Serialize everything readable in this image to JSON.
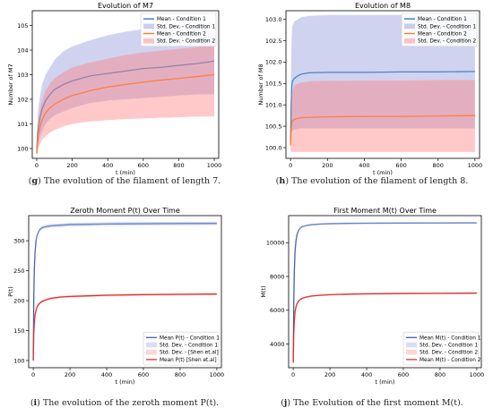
{
  "panels": [
    {
      "caption_letter": "g",
      "caption_text": "The evolution of the filament of length 7.",
      "chart_data": {
        "type": "line",
        "title": "Evolution of M7",
        "xlabel": "t (min)",
        "ylabel": "Number of M7",
        "xlim": [
          -25,
          1025
        ],
        "ylim": [
          99.6,
          105.6
        ],
        "xticks": [
          0,
          200,
          400,
          600,
          800,
          1000
        ],
        "yticks": [
          100,
          101,
          102,
          103,
          104,
          105
        ],
        "legend": "top-right",
        "series": [
          {
            "name": "Mean - Condition 1",
            "kind": "line",
            "color": "#1f77b4",
            "x": [
              0,
              5,
              10,
              20,
              30,
              50,
              75,
              100,
              150,
              200,
              300,
              400,
              500,
              600,
              700,
              800,
              900,
              1000
            ],
            "y": [
              99.8,
              100.6,
              100.9,
              101.3,
              101.6,
              101.95,
              102.2,
              102.4,
              102.6,
              102.75,
              102.95,
              103.05,
              103.15,
              103.25,
              103.3,
              103.38,
              103.45,
              103.55
            ]
          },
          {
            "name": "Std. Dev. - Condition 1",
            "kind": "band",
            "color": "#8c96d9",
            "x": [
              0,
              5,
              10,
              20,
              30,
              50,
              75,
              100,
              150,
              200,
              300,
              400,
              500,
              600,
              700,
              800,
              900,
              1000
            ],
            "lower": [
              99.7,
              100.0,
              100.2,
              100.5,
              100.7,
              101.0,
              101.2,
              101.35,
              101.5,
              101.65,
              101.85,
              101.95,
              102.0,
              102.05,
              102.1,
              102.15,
              102.2,
              102.2
            ],
            "upper": [
              99.9,
              101.3,
              101.7,
              102.2,
              102.6,
              103.0,
              103.3,
              103.6,
              103.95,
              104.15,
              104.4,
              104.6,
              104.75,
              104.85,
              104.95,
              105.0,
              105.05,
              105.1
            ]
          },
          {
            "name": "Mean - Condition 2",
            "kind": "line",
            "color": "#ff7f0e",
            "x": [
              0,
              5,
              10,
              20,
              30,
              50,
              75,
              100,
              150,
              200,
              300,
              400,
              500,
              600,
              700,
              800,
              900,
              1000
            ],
            "y": [
              99.8,
              100.3,
              100.6,
              100.9,
              101.15,
              101.45,
              101.65,
              101.8,
              102.0,
              102.15,
              102.35,
              102.5,
              102.6,
              102.7,
              102.78,
              102.85,
              102.92,
              103.0
            ]
          },
          {
            "name": "Std. Dev. - Condition 2",
            "kind": "band",
            "color": "#ff7f7f",
            "x": [
              0,
              5,
              10,
              20,
              30,
              50,
              75,
              100,
              150,
              200,
              300,
              400,
              500,
              600,
              700,
              800,
              900,
              1000
            ],
            "lower": [
              99.7,
              99.9,
              100.0,
              100.2,
              100.35,
              100.5,
              100.65,
              100.75,
              100.9,
              101.0,
              101.1,
              101.15,
              101.2,
              101.22,
              101.25,
              101.27,
              101.3,
              101.3
            ],
            "upper": [
              99.9,
              100.8,
              101.2,
              101.65,
              101.95,
              102.35,
              102.65,
              102.85,
              103.1,
              103.3,
              103.5,
              103.65,
              103.8,
              103.9,
              103.98,
              104.05,
              104.12,
              104.2
            ]
          }
        ]
      }
    },
    {
      "caption_letter": "h",
      "caption_text": "The evolution of the filament of length 8.",
      "chart_data": {
        "type": "line",
        "title": "Evolution of M8",
        "xlabel": "t (min)",
        "ylabel": "Number of M8",
        "xlim": [
          -25,
          1025
        ],
        "ylim": [
          99.75,
          103.2
        ],
        "xticks": [
          0,
          200,
          400,
          600,
          800,
          1000
        ],
        "yticks": [
          100.0,
          100.5,
          101.0,
          101.5,
          102.0,
          102.5,
          103.0
        ],
        "ytick_labels": [
          "100.0",
          "100.5",
          "101.0",
          "101.5",
          "102.0",
          "102.5",
          "103.0"
        ],
        "legend": "top-right",
        "series": [
          {
            "name": "Mean - Condition 1",
            "kind": "line",
            "color": "#1f77b4",
            "x": [
              0,
              3,
              6,
              10,
              20,
              40,
              60,
              100,
              200,
              400,
              600,
              800,
              1000
            ],
            "y": [
              100.1,
              100.9,
              101.4,
              101.55,
              101.62,
              101.68,
              101.72,
              101.75,
              101.76,
              101.76,
              101.77,
              101.77,
              101.78
            ]
          },
          {
            "name": "Std. Dev. - Condition 1",
            "kind": "band",
            "color": "#8c96d9",
            "x": [
              0,
              3,
              6,
              10,
              20,
              40,
              60,
              100,
              200,
              400,
              600,
              800,
              1000
            ],
            "lower": [
              100.0,
              100.2,
              100.35,
              100.4,
              100.42,
              100.44,
              100.45,
              100.45,
              100.45,
              100.45,
              100.45,
              100.45,
              100.45
            ],
            "upper": [
              100.2,
              101.9,
              102.6,
              102.85,
              102.95,
              103.0,
              103.05,
              103.08,
              103.1,
              103.1,
              103.1,
              103.1,
              103.1
            ]
          },
          {
            "name": "Mean - Condition 2",
            "kind": "line",
            "color": "#ff7f0e",
            "x": [
              0,
              3,
              6,
              10,
              20,
              40,
              60,
              100,
              200,
              400,
              600,
              800,
              1000
            ],
            "y": [
              100.05,
              100.4,
              100.55,
              100.62,
              100.66,
              100.69,
              100.7,
              100.71,
              100.72,
              100.73,
              100.73,
              100.74,
              100.75
            ]
          },
          {
            "name": "Std. Dev. - Condition 2",
            "kind": "band",
            "color": "#ff7f7f",
            "x": [
              0,
              3,
              6,
              10,
              20,
              40,
              60,
              100,
              200,
              400,
              600,
              800,
              1000
            ],
            "lower": [
              99.95,
              99.9,
              99.9,
              99.9,
              99.9,
              99.9,
              99.9,
              99.9,
              99.9,
              99.9,
              99.9,
              99.9,
              99.9
            ],
            "upper": [
              100.15,
              100.9,
              101.2,
              101.35,
              101.45,
              101.5,
              101.52,
              101.55,
              101.56,
              101.57,
              101.57,
              101.58,
              101.58
            ]
          }
        ]
      }
    },
    {
      "caption_letter": "i",
      "caption_text": "The evolution of the zeroth moment P(t).",
      "chart_data": {
        "type": "line",
        "title": "Zeroth Moment P(t) Over Time",
        "xlabel": "t (min)",
        "ylabel": "P(t)",
        "xlim": [
          -25,
          1025
        ],
        "ylim": [
          88,
          342
        ],
        "xticks": [
          0,
          200,
          400,
          600,
          800,
          1000
        ],
        "yticks": [
          100,
          150,
          200,
          250,
          300
        ],
        "legend": "bottom-right",
        "series": [
          {
            "name": "Mean P(t) - Condition 1",
            "kind": "line",
            "color": "#3f5fb0",
            "x": [
              0,
              3,
              6,
              10,
              15,
              20,
              30,
              40,
              50,
              75,
              100,
              150,
              200,
              300,
              400,
              600,
              800,
              1000
            ],
            "y": [
              100,
              210,
              255,
              282,
              300,
              308,
              316,
              320,
              322,
              324,
              325,
              326,
              327,
              327.5,
              328,
              328.5,
              328.8,
              329
            ]
          },
          {
            "name": "Std. Dev. - Condition 1",
            "kind": "band",
            "color": "#aab4e8",
            "x": [
              0,
              3,
              6,
              10,
              15,
              20,
              30,
              40,
              50,
              75,
              100,
              150,
              200,
              300,
              400,
              600,
              800,
              1000
            ],
            "lower": [
              99,
              207,
              252,
              279,
              297,
              305,
              313,
              317,
              319,
              321,
              322,
              323,
              324,
              324.5,
              325,
              325.5,
              325.8,
              326
            ],
            "upper": [
              101,
              213,
              258,
              285,
              303,
              311,
              319,
              323,
              325,
              327,
              328,
              329,
              330,
              330.5,
              331,
              331.5,
              331.8,
              332
            ]
          },
          {
            "name": "Std. Dev. - [Shen et.al]",
            "kind": "band",
            "color": "#f4a6a6",
            "x": [
              0,
              3,
              6,
              10,
              15,
              20,
              30,
              40,
              50,
              75,
              100,
              150,
              200,
              300,
              400,
              600,
              800,
              1000
            ],
            "lower": [
              99,
              145,
              162,
              174,
              182,
              187,
              192,
              195,
              197,
              200,
              202,
              204,
              205,
              206,
              207,
              208,
              208.5,
              209
            ],
            "upper": [
              101,
              149,
              166,
              178,
              186,
              191,
              196,
              199,
              201,
              204,
              206,
              208,
              209,
              210,
              211,
              212,
              212.5,
              213
            ]
          },
          {
            "name": "Mean P(t) [Shen et.al]",
            "kind": "line",
            "color": "#e03030",
            "x": [
              0,
              3,
              6,
              10,
              15,
              20,
              30,
              40,
              50,
              75,
              100,
              150,
              200,
              300,
              400,
              600,
              800,
              1000
            ],
            "y": [
              100,
              147,
              164,
              176,
              184,
              189,
              194,
              197,
              199,
              202,
              204,
              206,
              207,
              208,
              209,
              210,
              210.5,
              211
            ]
          }
        ]
      }
    },
    {
      "caption_letter": "j",
      "caption_text": "The Evolution of the first moment M(t).",
      "chart_data": {
        "type": "line",
        "title": "First Moment M(t) Over Time",
        "xlabel": "t (min)",
        "ylabel": "M(t)",
        "xlim": [
          -25,
          1025
        ],
        "ylim": [
          2600,
          11600
        ],
        "xticks": [
          0,
          200,
          400,
          600,
          800,
          1000
        ],
        "yticks": [
          4000,
          6000,
          8000,
          10000
        ],
        "legend": "bottom-right",
        "series": [
          {
            "name": "Mean M(t) - Condition 1",
            "kind": "line",
            "color": "#3f5fb0",
            "x": [
              0,
              3,
              6,
              10,
              15,
              20,
              30,
              40,
              50,
              75,
              100,
              150,
              200,
              300,
              400,
              600,
              800,
              1000
            ],
            "y": [
              2900,
              6500,
              8300,
              9500,
              10100,
              10450,
              10750,
              10880,
              10950,
              11020,
              11060,
              11100,
              11120,
              11140,
              11150,
              11160,
              11165,
              11170
            ]
          },
          {
            "name": "Std. Dev. - Condition 1",
            "kind": "band",
            "color": "#aab4e8",
            "x": [
              0,
              3,
              6,
              10,
              15,
              20,
              30,
              40,
              50,
              75,
              100,
              150,
              200,
              300,
              400,
              600,
              800,
              1000
            ],
            "lower": [
              2880,
              6450,
              8250,
              9450,
              10050,
              10400,
              10700,
              10830,
              10900,
              10970,
              11010,
              11050,
              11070,
              11090,
              11100,
              11110,
              11115,
              11120
            ],
            "upper": [
              2920,
              6550,
              8350,
              9550,
              10150,
              10500,
              10800,
              10930,
              11000,
              11070,
              11110,
              11150,
              11170,
              11190,
              11200,
              11210,
              11215,
              11220
            ]
          },
          {
            "name": "Std. Dev. - Condition 2",
            "kind": "band",
            "color": "#f4a6a6",
            "x": [
              0,
              3,
              6,
              10,
              15,
              20,
              30,
              40,
              50,
              75,
              100,
              150,
              200,
              300,
              400,
              600,
              800,
              1000
            ],
            "lower": [
              2880,
              4500,
              5300,
              5850,
              6150,
              6320,
              6500,
              6600,
              6660,
              6740,
              6790,
              6840,
              6870,
              6900,
              6920,
              6940,
              6950,
              6960
            ],
            "upper": [
              2920,
              4600,
              5400,
              5950,
              6250,
              6420,
              6600,
              6700,
              6760,
              6840,
              6890,
              6940,
              6970,
              7000,
              7020,
              7040,
              7050,
              7060
            ]
          },
          {
            "name": "Mean M(t) - Condition 2",
            "kind": "line",
            "color": "#e03030",
            "x": [
              0,
              3,
              6,
              10,
              15,
              20,
              30,
              40,
              50,
              75,
              100,
              150,
              200,
              300,
              400,
              600,
              800,
              1000
            ],
            "y": [
              2900,
              4550,
              5350,
              5900,
              6200,
              6370,
              6550,
              6650,
              6710,
              6790,
              6840,
              6890,
              6920,
              6950,
              6970,
              6990,
              7000,
              7010
            ]
          }
        ]
      }
    }
  ]
}
